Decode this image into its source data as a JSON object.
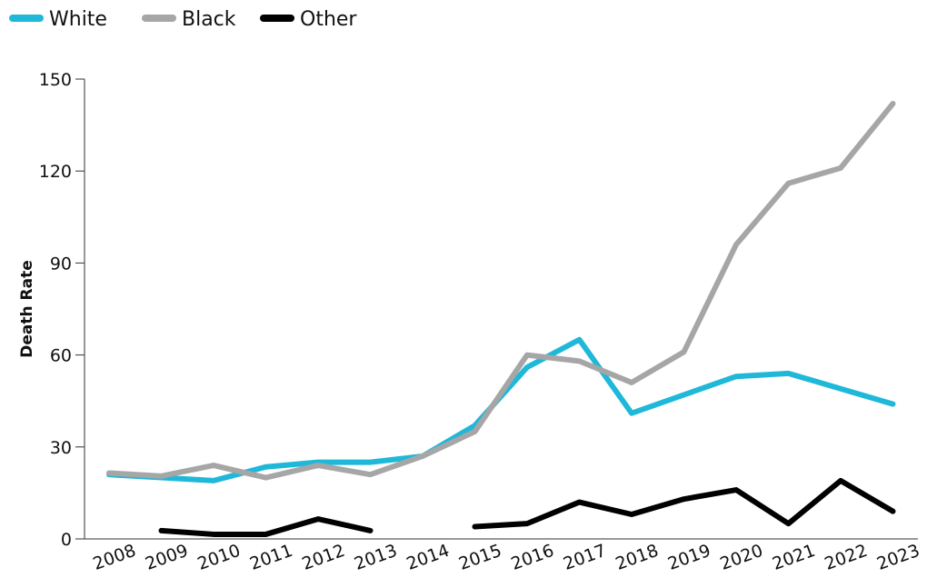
{
  "chart_data": {
    "type": "line",
    "y_label": "Death Rate",
    "categories": [
      "2008",
      "2009",
      "2010",
      "2011",
      "2012",
      "2013",
      "2014",
      "2015",
      "2016",
      "2017",
      "2018",
      "2019",
      "2020",
      "2021",
      "2022",
      "2023"
    ],
    "series": [
      {
        "name": "White",
        "color": "#1fb8d9",
        "values": [
          21,
          20,
          19,
          23.5,
          25,
          25,
          27,
          37,
          56,
          65,
          41,
          47,
          53,
          54,
          49,
          44
        ]
      },
      {
        "name": "Black",
        "color": "#a6a6a6",
        "values": [
          21.5,
          20.5,
          24,
          20,
          24,
          21,
          27,
          35,
          60,
          58,
          51,
          61,
          96,
          116,
          121,
          142
        ]
      },
      {
        "name": "Other",
        "color": "#000000",
        "values": [
          null,
          2.7,
          1.5,
          1.5,
          6.5,
          2.7,
          null,
          4,
          5,
          12,
          8,
          13,
          16,
          5,
          19,
          9
        ]
      }
    ],
    "ylim": [
      0,
      150
    ],
    "yticks": [
      0,
      30,
      60,
      90,
      120,
      150
    ]
  }
}
